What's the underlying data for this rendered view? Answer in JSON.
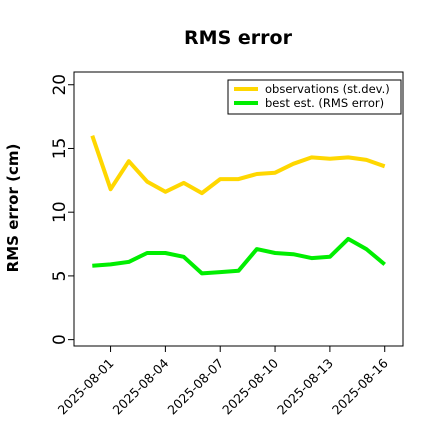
{
  "chart_data": {
    "type": "line",
    "title": "RMS error",
    "xlabel": "",
    "ylabel": "RMS error (cm)",
    "x": [
      "2025-07-31",
      "2025-08-01",
      "2025-08-02",
      "2025-08-03",
      "2025-08-04",
      "2025-08-05",
      "2025-08-06",
      "2025-08-07",
      "2025-08-08",
      "2025-08-09",
      "2025-08-10",
      "2025-08-11",
      "2025-08-12",
      "2025-08-13",
      "2025-08-14",
      "2025-08-15",
      "2025-08-16"
    ],
    "xticks": [
      "2025-08-01",
      "2025-08-04",
      "2025-08-07",
      "2025-08-10",
      "2025-08-13",
      "2025-08-16"
    ],
    "highlight_tick": "2025-08-07",
    "highlight_color": "#228B22",
    "yticks": [
      0,
      5,
      10,
      15,
      20
    ],
    "ylim": [
      -0.5,
      21
    ],
    "xlim": [
      "2025-07-30",
      "2025-08-17"
    ],
    "grid": false,
    "legend_position": "top-right",
    "series": [
      {
        "name": "observations (st.dev.)",
        "color": "#FFD700",
        "values": [
          16.0,
          11.8,
          14.0,
          12.4,
          11.6,
          12.3,
          11.5,
          12.6,
          12.6,
          13.0,
          13.1,
          13.8,
          14.3,
          14.2,
          14.3,
          14.1,
          13.6
        ]
      },
      {
        "name": "best est. (RMS error)",
        "color": "#00EE00",
        "values": [
          5.8,
          5.9,
          6.1,
          6.8,
          6.8,
          6.5,
          5.2,
          5.3,
          5.4,
          7.1,
          6.8,
          6.7,
          6.4,
          6.5,
          7.9,
          7.1,
          5.9
        ]
      }
    ]
  }
}
